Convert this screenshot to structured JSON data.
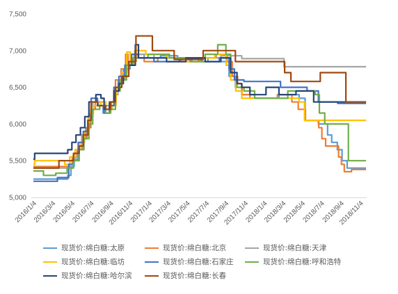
{
  "chart_data": {
    "type": "line",
    "line_shape": "step",
    "x_range": [
      "2016-01-04",
      "2018-11-25"
    ],
    "ylim": [
      5000,
      7500
    ],
    "y_ticks": [
      "5,000",
      "5,500",
      "6,000",
      "6,500",
      "7,000",
      "7,500"
    ],
    "x_ticks": [
      "2016/1/4",
      "2016/3/4",
      "2016/5/4",
      "2016/7/4",
      "2016/9/4",
      "2016/11/4",
      "2017/1/4",
      "2017/3/4",
      "2017/5/4",
      "2017/7/4",
      "2017/9/4",
      "2017/11/4",
      "2018/1/4",
      "2018/3/4",
      "2018/5/4",
      "2018/7/4",
      "2018/9/4",
      "2018/11/4"
    ],
    "grid": false,
    "legend_position": "bottom",
    "series": [
      {
        "name": "现货价:绵白糖:太原",
        "color": "#5B9BD5",
        "points": [
          [
            "2016-01-04",
            5250
          ],
          [
            "2016-04-22",
            5300
          ],
          [
            "2016-05-02",
            5420
          ],
          [
            "2016-05-12",
            5520
          ],
          [
            "2016-05-24",
            5650
          ],
          [
            "2016-06-06",
            5800
          ],
          [
            "2016-06-18",
            5950
          ],
          [
            "2016-06-30",
            6150
          ],
          [
            "2016-07-10",
            6300
          ],
          [
            "2016-07-28",
            6250
          ],
          [
            "2016-08-12",
            6150
          ],
          [
            "2016-09-02",
            6250
          ],
          [
            "2016-09-16",
            6450
          ],
          [
            "2016-09-28",
            6600
          ],
          [
            "2016-10-15",
            6750
          ],
          [
            "2016-11-05",
            6850
          ],
          [
            "2016-11-18",
            6950
          ],
          [
            "2016-12-20",
            6900
          ],
          [
            "2017-02-10",
            6930
          ],
          [
            "2017-04-05",
            6880
          ],
          [
            "2017-05-20",
            6850
          ],
          [
            "2017-07-10",
            6900
          ],
          [
            "2017-08-20",
            6850
          ],
          [
            "2017-09-15",
            6650
          ],
          [
            "2017-10-05",
            6500
          ],
          [
            "2017-10-25",
            6400
          ],
          [
            "2017-12-05",
            6350
          ],
          [
            "2018-02-20",
            6400
          ],
          [
            "2018-04-25",
            6350
          ],
          [
            "2018-05-14",
            6050
          ],
          [
            "2018-06-25",
            6000
          ],
          [
            "2018-07-24",
            5850
          ],
          [
            "2018-08-06",
            5750
          ],
          [
            "2018-08-24",
            5650
          ],
          [
            "2018-09-08",
            5500
          ],
          [
            "2018-09-24",
            5400
          ],
          [
            "2018-11-23",
            5400
          ]
        ]
      },
      {
        "name": "现货价:绵白糖:北京",
        "color": "#ED7D31",
        "points": [
          [
            "2016-01-04",
            5420
          ],
          [
            "2016-04-25",
            5450
          ],
          [
            "2016-05-06",
            5550
          ],
          [
            "2016-05-22",
            5650
          ],
          [
            "2016-06-08",
            5800
          ],
          [
            "2016-06-22",
            5950
          ],
          [
            "2016-07-04",
            6200
          ],
          [
            "2016-07-18",
            6300
          ],
          [
            "2016-08-15",
            6250
          ],
          [
            "2016-09-06",
            6300
          ],
          [
            "2016-09-20",
            6600
          ],
          [
            "2016-10-08",
            6750
          ],
          [
            "2016-10-22",
            6950
          ],
          [
            "2016-10-30",
            6800
          ],
          [
            "2016-11-12",
            6900
          ],
          [
            "2016-12-20",
            6850
          ],
          [
            "2017-02-01",
            6900
          ],
          [
            "2017-04-15",
            6850
          ],
          [
            "2017-06-10",
            6900
          ],
          [
            "2017-08-05",
            6950
          ],
          [
            "2017-09-08",
            6850
          ],
          [
            "2017-09-25",
            6650
          ],
          [
            "2017-10-12",
            6550
          ],
          [
            "2017-10-26",
            6400
          ],
          [
            "2017-11-20",
            6350
          ],
          [
            "2018-02-15",
            6400
          ],
          [
            "2018-04-02",
            6300
          ],
          [
            "2018-04-22",
            6200
          ],
          [
            "2018-05-15",
            6050
          ],
          [
            "2018-06-26",
            5950
          ],
          [
            "2018-07-06",
            5800
          ],
          [
            "2018-07-18",
            5700
          ],
          [
            "2018-08-28",
            5550
          ],
          [
            "2018-09-06",
            5450
          ],
          [
            "2018-09-15",
            5350
          ],
          [
            "2018-10-08",
            5380
          ],
          [
            "2018-11-23",
            5380
          ]
        ]
      },
      {
        "name": "现货价:绵白糖:天津",
        "color": "#A5A5A5",
        "points": [
          [
            "2016-01-04",
            5400
          ],
          [
            "2016-04-28",
            5500
          ],
          [
            "2016-05-16",
            5650
          ],
          [
            "2016-06-05",
            5850
          ],
          [
            "2016-06-26",
            6100
          ],
          [
            "2016-07-10",
            6300
          ],
          [
            "2016-08-20",
            6250
          ],
          [
            "2016-09-15",
            6400
          ],
          [
            "2016-09-28",
            6600
          ],
          [
            "2016-10-20",
            6800
          ],
          [
            "2016-11-20",
            6950
          ],
          [
            "2017-01-20",
            6900
          ],
          [
            "2017-04-01",
            6880
          ],
          [
            "2017-06-01",
            6900
          ],
          [
            "2017-08-20",
            6930
          ],
          [
            "2017-10-25",
            6890
          ],
          [
            "2018-03-08",
            6780
          ],
          [
            "2018-11-23",
            6780
          ]
        ]
      },
      {
        "name": "现货价:绵白糖:临坊",
        "color": "#FFC000",
        "points": [
          [
            "2016-01-04",
            5450
          ],
          [
            "2016-01-08",
            5500
          ],
          [
            "2016-04-12",
            5450
          ],
          [
            "2016-04-28",
            5550
          ],
          [
            "2016-05-15",
            5650
          ],
          [
            "2016-05-30",
            5750
          ],
          [
            "2016-06-14",
            5900
          ],
          [
            "2016-06-28",
            6150
          ],
          [
            "2016-07-12",
            6250
          ],
          [
            "2016-08-05",
            6300
          ],
          [
            "2016-08-20",
            6200
          ],
          [
            "2016-09-10",
            6250
          ],
          [
            "2016-09-22",
            6500
          ],
          [
            "2016-10-10",
            6700
          ],
          [
            "2016-10-26",
            6980
          ],
          [
            "2016-11-06",
            6800
          ],
          [
            "2016-11-20",
            7000
          ],
          [
            "2016-12-25",
            6950
          ],
          [
            "2017-03-01",
            6900
          ],
          [
            "2017-05-01",
            6850
          ],
          [
            "2017-06-15",
            6900
          ],
          [
            "2017-08-01",
            6950
          ],
          [
            "2017-09-06",
            6800
          ],
          [
            "2017-09-20",
            6600
          ],
          [
            "2017-10-06",
            6450
          ],
          [
            "2017-10-25",
            6350
          ],
          [
            "2018-04-25",
            6300
          ],
          [
            "2018-05-12",
            6050
          ],
          [
            "2018-11-23",
            6050
          ]
        ]
      },
      {
        "name": "现货价:绵白糖:石家庄",
        "color": "#4472C4",
        "points": [
          [
            "2016-01-04",
            5220
          ],
          [
            "2016-03-20",
            5270
          ],
          [
            "2016-04-25",
            5450
          ],
          [
            "2016-05-10",
            5600
          ],
          [
            "2016-05-25",
            5750
          ],
          [
            "2016-06-10",
            5900
          ],
          [
            "2016-06-24",
            6050
          ],
          [
            "2016-07-05",
            6350
          ],
          [
            "2016-07-25",
            6250
          ],
          [
            "2016-08-15",
            6150
          ],
          [
            "2016-09-01",
            6250
          ],
          [
            "2016-09-15",
            6500
          ],
          [
            "2016-10-01",
            6650
          ],
          [
            "2016-10-20",
            6800
          ],
          [
            "2016-11-10",
            6950
          ],
          [
            "2016-12-01",
            6900
          ],
          [
            "2017-01-20",
            6850
          ],
          [
            "2017-04-10",
            6900
          ],
          [
            "2017-06-20",
            6850
          ],
          [
            "2017-08-15",
            6900
          ],
          [
            "2017-09-15",
            6750
          ],
          [
            "2017-10-02",
            6600
          ],
          [
            "2017-11-01",
            6580
          ],
          [
            "2018-02-25",
            6500
          ],
          [
            "2018-05-20",
            6450
          ],
          [
            "2018-06-25",
            6300
          ],
          [
            "2018-08-25",
            6280
          ],
          [
            "2018-11-23",
            6280
          ]
        ]
      },
      {
        "name": "现货价:绵白糖:呼和浩特",
        "color": "#70AD47",
        "points": [
          [
            "2016-01-04",
            5360
          ],
          [
            "2016-02-05",
            5300
          ],
          [
            "2016-03-15",
            5330
          ],
          [
            "2016-04-20",
            5400
          ],
          [
            "2016-05-10",
            5500
          ],
          [
            "2016-05-28",
            5650
          ],
          [
            "2016-06-12",
            5800
          ],
          [
            "2016-06-28",
            6000
          ],
          [
            "2016-07-10",
            6200
          ],
          [
            "2016-08-01",
            6250
          ],
          [
            "2016-08-20",
            6150
          ],
          [
            "2016-09-05",
            6200
          ],
          [
            "2016-09-20",
            6450
          ],
          [
            "2016-10-05",
            6600
          ],
          [
            "2016-10-25",
            6800
          ],
          [
            "2016-11-15",
            6900
          ],
          [
            "2017-01-01",
            6950
          ],
          [
            "2017-03-10",
            6900
          ],
          [
            "2017-05-15",
            6850
          ],
          [
            "2017-07-01",
            6950
          ],
          [
            "2017-08-10",
            7080
          ],
          [
            "2017-09-05",
            6950
          ],
          [
            "2017-09-20",
            6700
          ],
          [
            "2017-10-10",
            6500
          ],
          [
            "2017-11-01",
            6450
          ],
          [
            "2017-12-05",
            6350
          ],
          [
            "2018-03-20",
            6450
          ],
          [
            "2018-06-15",
            6400
          ],
          [
            "2018-06-28",
            6150
          ],
          [
            "2018-07-15",
            6000
          ],
          [
            "2018-09-28",
            5500
          ],
          [
            "2018-11-23",
            5500
          ]
        ]
      },
      {
        "name": "现货价:绵白糖:哈尔滨",
        "color": "#264478",
        "points": [
          [
            "2016-01-04",
            5520
          ],
          [
            "2016-01-08",
            5600
          ],
          [
            "2016-04-22",
            5650
          ],
          [
            "2016-05-05",
            5750
          ],
          [
            "2016-05-18",
            5850
          ],
          [
            "2016-06-01",
            5950
          ],
          [
            "2016-06-15",
            6100
          ],
          [
            "2016-06-28",
            6300
          ],
          [
            "2016-07-20",
            6400
          ],
          [
            "2016-08-05",
            6350
          ],
          [
            "2016-08-15",
            6200
          ],
          [
            "2016-09-01",
            6300
          ],
          [
            "2016-09-15",
            6450
          ],
          [
            "2016-10-01",
            6550
          ],
          [
            "2016-10-15",
            6650
          ],
          [
            "2016-11-01",
            6800
          ],
          [
            "2016-11-22",
            7080
          ],
          [
            "2016-12-02",
            6900
          ],
          [
            "2017-03-01",
            6850
          ],
          [
            "2017-05-01",
            6900
          ],
          [
            "2017-07-01",
            6850
          ],
          [
            "2017-08-20",
            6900
          ],
          [
            "2017-09-20",
            6700
          ],
          [
            "2017-10-10",
            6550
          ],
          [
            "2017-10-25",
            6500
          ],
          [
            "2017-11-20",
            6400
          ],
          [
            "2018-01-10",
            6500
          ],
          [
            "2018-02-20",
            6400
          ],
          [
            "2018-04-15",
            6450
          ],
          [
            "2018-06-10",
            6300
          ],
          [
            "2018-11-23",
            6300
          ]
        ]
      },
      {
        "name": "现货价:绵白糖:长春",
        "color": "#9E480E",
        "points": [
          [
            "2016-01-04",
            5400
          ],
          [
            "2016-03-25",
            5500
          ],
          [
            "2016-05-10",
            5600
          ],
          [
            "2016-05-28",
            5700
          ],
          [
            "2016-06-10",
            5850
          ],
          [
            "2016-06-25",
            6050
          ],
          [
            "2016-07-05",
            6300
          ],
          [
            "2016-07-25",
            6250
          ],
          [
            "2016-08-20",
            6200
          ],
          [
            "2016-09-05",
            6300
          ],
          [
            "2016-09-20",
            6500
          ],
          [
            "2016-10-10",
            6650
          ],
          [
            "2016-11-01",
            6850
          ],
          [
            "2016-11-24",
            7200
          ],
          [
            "2017-01-15",
            7000
          ],
          [
            "2017-03-25",
            6880
          ],
          [
            "2017-06-25",
            7000
          ],
          [
            "2017-10-05",
            6850
          ],
          [
            "2018-03-10",
            6700
          ],
          [
            "2018-03-30",
            6580
          ],
          [
            "2018-07-01",
            6700
          ],
          [
            "2018-09-20",
            6300
          ],
          [
            "2018-11-23",
            6300
          ]
        ]
      }
    ]
  }
}
